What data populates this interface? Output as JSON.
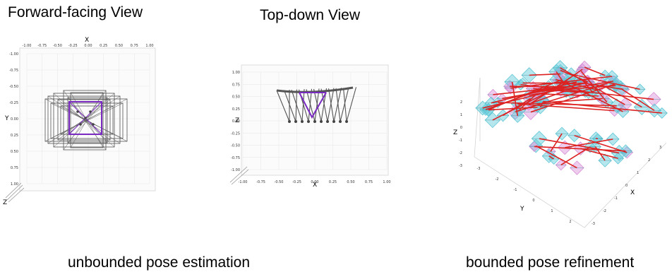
{
  "titles": {
    "forward": "Forward-facing View",
    "topdown": "Top-down View"
  },
  "captions": {
    "left": "unbounded pose estimation",
    "right": "bounded pose refinement"
  },
  "panels": {
    "forward": {
      "x_label": "X",
      "y_label": "Y",
      "z_label": "Z",
      "x_ticks": [
        "-1.00",
        "-0.75",
        "-0.50",
        "-0.25",
        "0.00",
        "0.25",
        "0.50",
        "0.75",
        "1.00"
      ],
      "y_ticks": [
        "-1.00",
        "-0.75",
        "-0.50",
        "-0.25",
        "0.00",
        "0.25",
        "0.50",
        "0.75",
        "1.00"
      ]
    },
    "topdown": {
      "x_label": "X",
      "z_label": "Z",
      "x_ticks": [
        "-1.00",
        "-0.75",
        "-0.50",
        "-0.25",
        "0.00",
        "0.25",
        "0.50",
        "0.75",
        "1.00"
      ],
      "z_ticks": [
        "1.00",
        "0.75",
        "0.50",
        "0.25",
        "0.00",
        "-0.25",
        "-0.50",
        "-0.75",
        "-1.00"
      ]
    },
    "sphere": {
      "x_label": "X",
      "y_label": "Y",
      "z_label": "Z",
      "z_ticks": [
        "2",
        "1",
        "0",
        "-1",
        "-2",
        "-3"
      ],
      "x_ticks": [
        "-3",
        "-2",
        "-1",
        "0",
        "1",
        "2",
        "3"
      ],
      "y_ticks": [
        "-3",
        "-2",
        "-1",
        "0",
        "1",
        "2"
      ]
    }
  },
  "colors": {
    "camera_gray": "#555555",
    "camera_purple": "#7a2bc0",
    "frustum_cyan": "#5ec8d6",
    "frustum_pink": "#d98ed8",
    "trajectory_red": "#dd2222",
    "grid": "#e6e6e6"
  }
}
